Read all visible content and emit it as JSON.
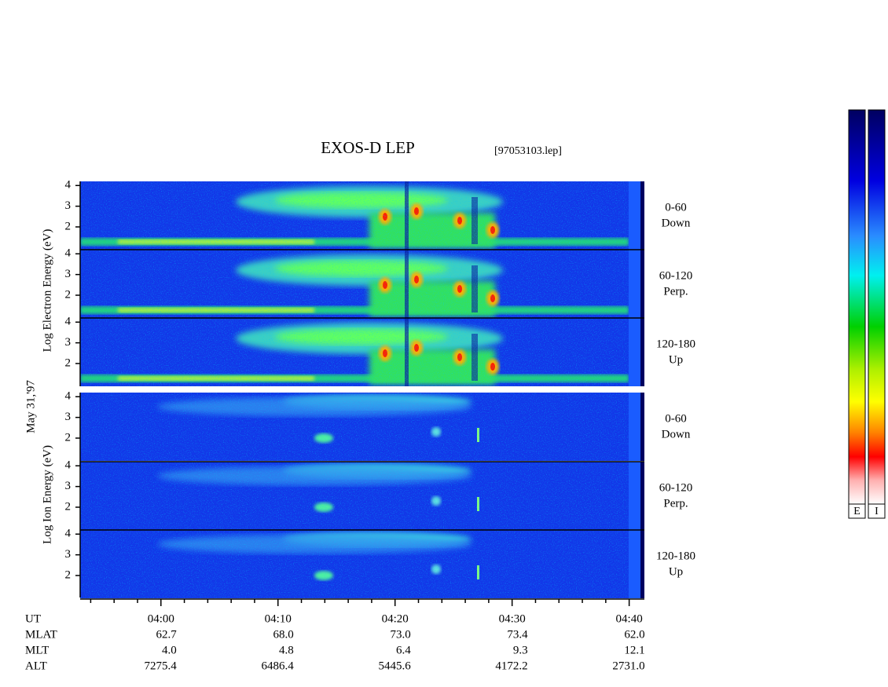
{
  "header": {
    "title": "EXOS-D LEP",
    "file": "[97053103.lep]"
  },
  "date": "May 31,'97",
  "electron_panels": {
    "axis_label": "Log  Electron  Energy  (eV)",
    "panels": [
      {
        "angle": "0-60",
        "direction": "Down"
      },
      {
        "angle": "60-120",
        "direction": "Perp."
      },
      {
        "angle": "120-180",
        "direction": "Up"
      }
    ]
  },
  "ion_panels": {
    "axis_label": "Log  Ion  Energy  (eV)",
    "panels": [
      {
        "angle": "0-60",
        "direction": "Down"
      },
      {
        "angle": "60-120",
        "direction": "Perp."
      },
      {
        "angle": "120-180",
        "direction": "Up"
      }
    ]
  },
  "energy_axis": {
    "ylim": [
      0.9,
      4.2
    ],
    "yticks": [
      2,
      3,
      4
    ]
  },
  "time_axis": {
    "xlim": [
      233.1,
      281.3
    ],
    "xticks": [
      {
        "value": 240,
        "label": "04:00"
      },
      {
        "value": 250,
        "label": "04:10"
      },
      {
        "value": 260,
        "label": "04:20"
      },
      {
        "value": 270,
        "label": "04:30"
      },
      {
        "value": 280,
        "label": "04:40"
      }
    ],
    "xminorticks": [
      234,
      236,
      238,
      242,
      244,
      246,
      248,
      252,
      254,
      256,
      258,
      262,
      264,
      266,
      268,
      272,
      274,
      276,
      278
    ]
  },
  "ephemeris": {
    "row_labels": [
      "UT",
      "MLAT",
      "MLT",
      "ALT"
    ],
    "rows": [
      [
        "62.7",
        "68.0",
        "73.0",
        "73.4",
        "62.0"
      ],
      [
        "4.0",
        "4.8",
        "6.4",
        "9.3",
        "12.1"
      ],
      [
        "7275.4",
        "6486.4",
        "5445.6",
        "4172.2",
        "2731.0"
      ]
    ]
  },
  "colorbars": [
    "E",
    "I"
  ]
}
